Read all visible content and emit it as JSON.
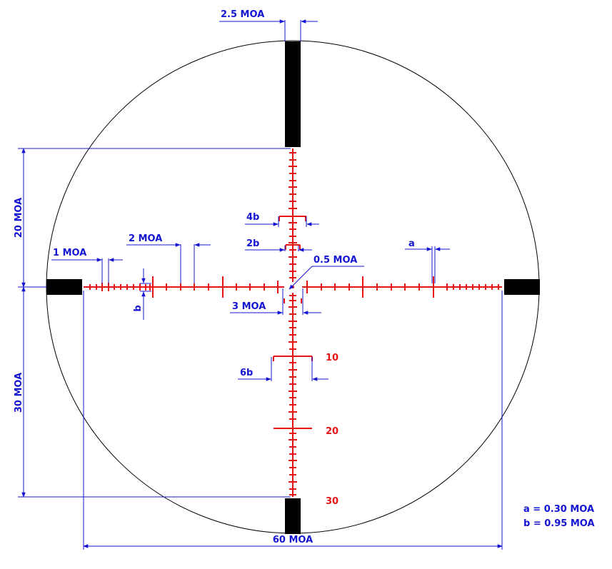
{
  "colors": {
    "reticle": "#e61414",
    "dimension": "#1414d2",
    "post": "#000000",
    "circle": "#000000",
    "background": "#ffffff"
  },
  "dimensions": {
    "post_width": "2.5 MOA",
    "upper_span": "20 MOA",
    "lower_span": "30 MOA",
    "total_width": "60 MOA",
    "one_moa": "1 MOA",
    "two_moa": "2 MOA",
    "center_dot": "0.5 MOA",
    "three_moa": "3 MOA",
    "four_b": "4b",
    "two_b": "2b",
    "six_b": "6b",
    "a": "a",
    "b": "b"
  },
  "range_labels": [
    "10",
    "20",
    "30"
  ],
  "legend": {
    "a_value": "a = 0.30 MOA",
    "b_value": "b = 0.95 MOA"
  },
  "icons": {
    "arrow": "arrowhead-icon"
  }
}
